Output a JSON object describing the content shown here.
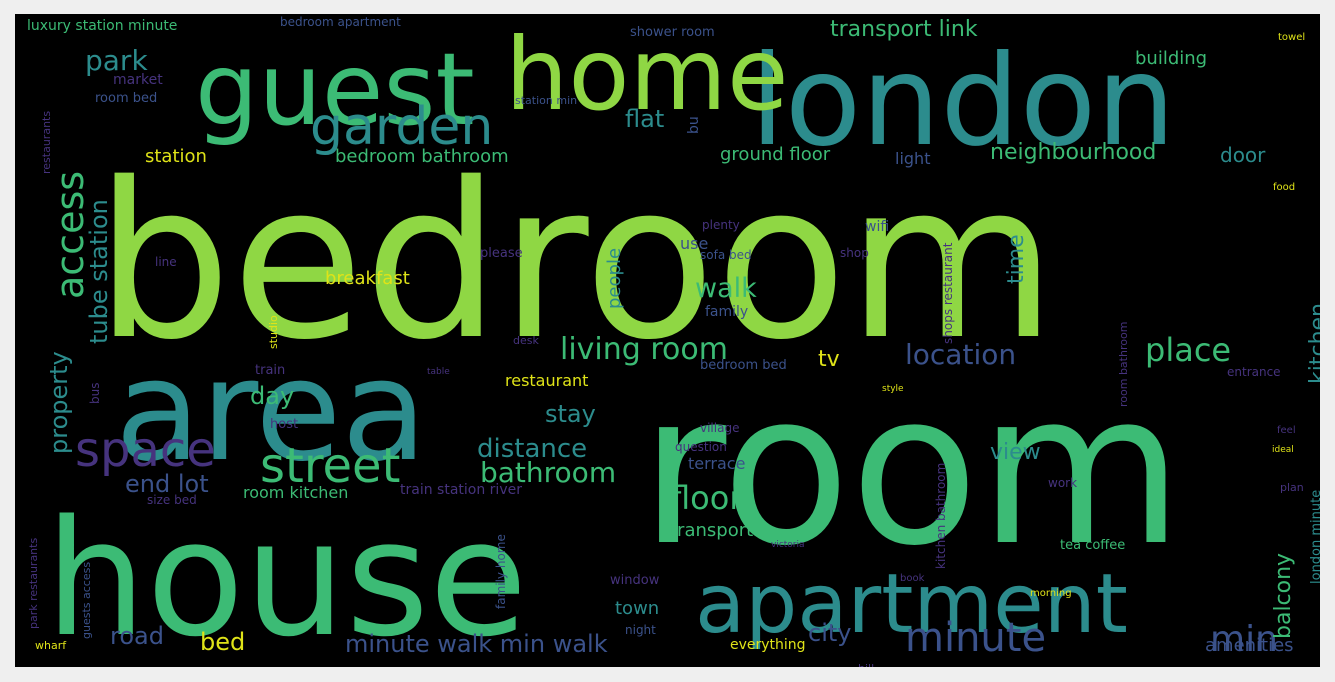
{
  "cloud": {
    "background": "#000000",
    "page_background": "#efefef",
    "palette": {
      "lime": "#8fd744",
      "green": "#3cbb75",
      "teal": "#2c8c8d",
      "blue": "#3b528b",
      "purple": "#46337e",
      "yellow": "#dfe318"
    },
    "words": [
      {
        "text": "bedroom",
        "color": "lime"
      },
      {
        "text": "room",
        "color": "green"
      },
      {
        "text": "house",
        "color": "green"
      },
      {
        "text": "area",
        "color": "teal"
      },
      {
        "text": "london",
        "color": "teal"
      },
      {
        "text": "guest",
        "color": "green"
      },
      {
        "text": "home",
        "color": "lime"
      },
      {
        "text": "apartment",
        "color": "teal"
      },
      {
        "text": "garden",
        "color": "teal"
      },
      {
        "text": "street",
        "color": "green"
      },
      {
        "text": "space",
        "color": "purple"
      },
      {
        "text": "access",
        "color": "green"
      },
      {
        "text": "minute",
        "color": "blue"
      },
      {
        "text": "min",
        "color": "blue"
      },
      {
        "text": "living room",
        "color": "green"
      },
      {
        "text": "place",
        "color": "green"
      },
      {
        "text": "location",
        "color": "blue"
      },
      {
        "text": "floor",
        "color": "green"
      },
      {
        "text": "bathroom",
        "color": "green"
      },
      {
        "text": "walk",
        "color": "green"
      },
      {
        "text": "distance",
        "color": "teal"
      },
      {
        "text": "tube station",
        "color": "teal"
      },
      {
        "text": "park",
        "color": "teal"
      },
      {
        "text": "flat",
        "color": "teal"
      },
      {
        "text": "neighbourhood",
        "color": "green"
      },
      {
        "text": "transport link",
        "color": "green"
      },
      {
        "text": "end lot",
        "color": "blue"
      },
      {
        "text": "property",
        "color": "teal"
      },
      {
        "text": "day",
        "color": "green"
      },
      {
        "text": "stay",
        "color": "teal"
      },
      {
        "text": "view",
        "color": "teal"
      },
      {
        "text": "time",
        "color": "teal"
      },
      {
        "text": "kitchen",
        "color": "teal"
      },
      {
        "text": "balcony",
        "color": "green"
      },
      {
        "text": "bed",
        "color": "yellow"
      },
      {
        "text": "road",
        "color": "blue"
      },
      {
        "text": "city",
        "color": "blue"
      },
      {
        "text": "tv",
        "color": "yellow"
      },
      {
        "text": "minute walk min walk",
        "color": "blue"
      },
      {
        "text": "amenities",
        "color": "blue"
      },
      {
        "text": "transport",
        "color": "green"
      },
      {
        "text": "town",
        "color": "teal"
      },
      {
        "text": "room kitchen",
        "color": "green"
      },
      {
        "text": "restaurant",
        "color": "yellow"
      },
      {
        "text": "breakfast",
        "color": "yellow"
      },
      {
        "text": "station",
        "color": "yellow"
      },
      {
        "text": "bedroom bathroom",
        "color": "green"
      },
      {
        "text": "ground floor",
        "color": "green"
      },
      {
        "text": "light",
        "color": "blue"
      },
      {
        "text": "door",
        "color": "teal"
      },
      {
        "text": "building",
        "color": "green"
      },
      {
        "text": "people",
        "color": "teal"
      },
      {
        "text": "use",
        "color": "blue"
      },
      {
        "text": "family",
        "color": "blue"
      },
      {
        "text": "terrace",
        "color": "blue"
      },
      {
        "text": "luxury station minute",
        "color": "green"
      },
      {
        "text": "bedroom apartment",
        "color": "blue"
      },
      {
        "text": "shower room",
        "color": "blue"
      },
      {
        "text": "market",
        "color": "purple"
      },
      {
        "text": "room bed",
        "color": "blue"
      },
      {
        "text": "tea coffee",
        "color": "green"
      },
      {
        "text": "everything",
        "color": "yellow"
      },
      {
        "text": "night",
        "color": "blue"
      },
      {
        "text": "window",
        "color": "purple"
      },
      {
        "text": "london minute",
        "color": "teal"
      },
      {
        "text": "train station river",
        "color": "purple"
      },
      {
        "text": "wifi",
        "color": "blue"
      },
      {
        "text": "bu",
        "color": "blue"
      },
      {
        "text": "bedroom bed",
        "color": "blue"
      },
      {
        "text": "sofa bed",
        "color": "blue"
      },
      {
        "text": "station min",
        "color": "blue"
      },
      {
        "text": "family home",
        "color": "blue"
      },
      {
        "text": "plenty",
        "color": "purple"
      },
      {
        "text": "please",
        "color": "purple"
      },
      {
        "text": "shop",
        "color": "purple"
      },
      {
        "text": "village",
        "color": "purple"
      },
      {
        "text": "question",
        "color": "purple"
      },
      {
        "text": "work",
        "color": "purple"
      },
      {
        "text": "entrance",
        "color": "purple"
      },
      {
        "text": "train",
        "color": "purple"
      },
      {
        "text": "host",
        "color": "purple"
      },
      {
        "text": "line",
        "color": "purple"
      },
      {
        "text": "size bed",
        "color": "purple"
      },
      {
        "text": "restaurants",
        "color": "purple"
      },
      {
        "text": "kitchen bathroom",
        "color": "purple"
      },
      {
        "text": "food",
        "color": "yellow"
      },
      {
        "text": "towel",
        "color": "yellow"
      },
      {
        "text": "bus",
        "color": "purple"
      },
      {
        "text": "wharf",
        "color": "yellow"
      },
      {
        "text": "morning",
        "color": "yellow"
      },
      {
        "text": "studio",
        "color": "yellow"
      },
      {
        "text": "desk",
        "color": "purple"
      },
      {
        "text": "hill",
        "color": "purple"
      },
      {
        "text": "plan",
        "color": "purple"
      },
      {
        "text": "feel",
        "color": "purple"
      },
      {
        "text": "ideal",
        "color": "yellow"
      },
      {
        "text": "book",
        "color": "purple"
      },
      {
        "text": "victoria",
        "color": "purple"
      },
      {
        "text": "table",
        "color": "purple"
      },
      {
        "text": "style",
        "color": "yellow"
      },
      {
        "text": "park restaurants",
        "color": "purple"
      },
      {
        "text": "guests access",
        "color": "blue"
      },
      {
        "text": "shops restaurant",
        "color": "purple"
      },
      {
        "text": "room bathroom",
        "color": "purple"
      }
    ]
  }
}
